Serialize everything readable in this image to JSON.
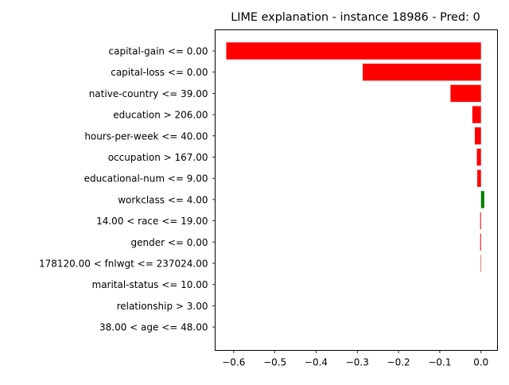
{
  "chart_data": {
    "type": "bar",
    "orientation": "horizontal",
    "title": "LIME explanation - instance 18986 - Pred: 0",
    "xlabel": "",
    "ylabel": "",
    "xlim": [
      -0.645,
      0.04
    ],
    "xticks": [
      -0.6,
      -0.5,
      -0.4,
      -0.3,
      -0.2,
      -0.1,
      0.0
    ],
    "xtick_labels": [
      "−0.6",
      "−0.5",
      "−0.4",
      "−0.3",
      "−0.2",
      "−0.1",
      "0.0"
    ],
    "grid": false,
    "colors": {
      "negative": "#ff0000",
      "positive": "#008000"
    },
    "categories": [
      "capital-gain <= 0.00",
      "capital-loss <= 0.00",
      "native-country <= 39.00",
      "education > 206.00",
      "hours-per-week <= 40.00",
      "occupation > 167.00",
      "educational-num <= 9.00",
      "workclass <= 4.00",
      "14.00 < race <= 19.00",
      "gender <= 0.00",
      "178120.00 < fnlwgt <= 237024.00",
      "marital-status <= 10.00",
      "relationship > 3.00",
      "38.00 < age <= 48.00"
    ],
    "values": [
      -0.618,
      -0.287,
      -0.074,
      -0.021,
      -0.015,
      -0.01,
      -0.009,
      0.008,
      -0.002,
      -0.002,
      -0.001,
      0.0,
      0.0,
      0.0
    ]
  }
}
